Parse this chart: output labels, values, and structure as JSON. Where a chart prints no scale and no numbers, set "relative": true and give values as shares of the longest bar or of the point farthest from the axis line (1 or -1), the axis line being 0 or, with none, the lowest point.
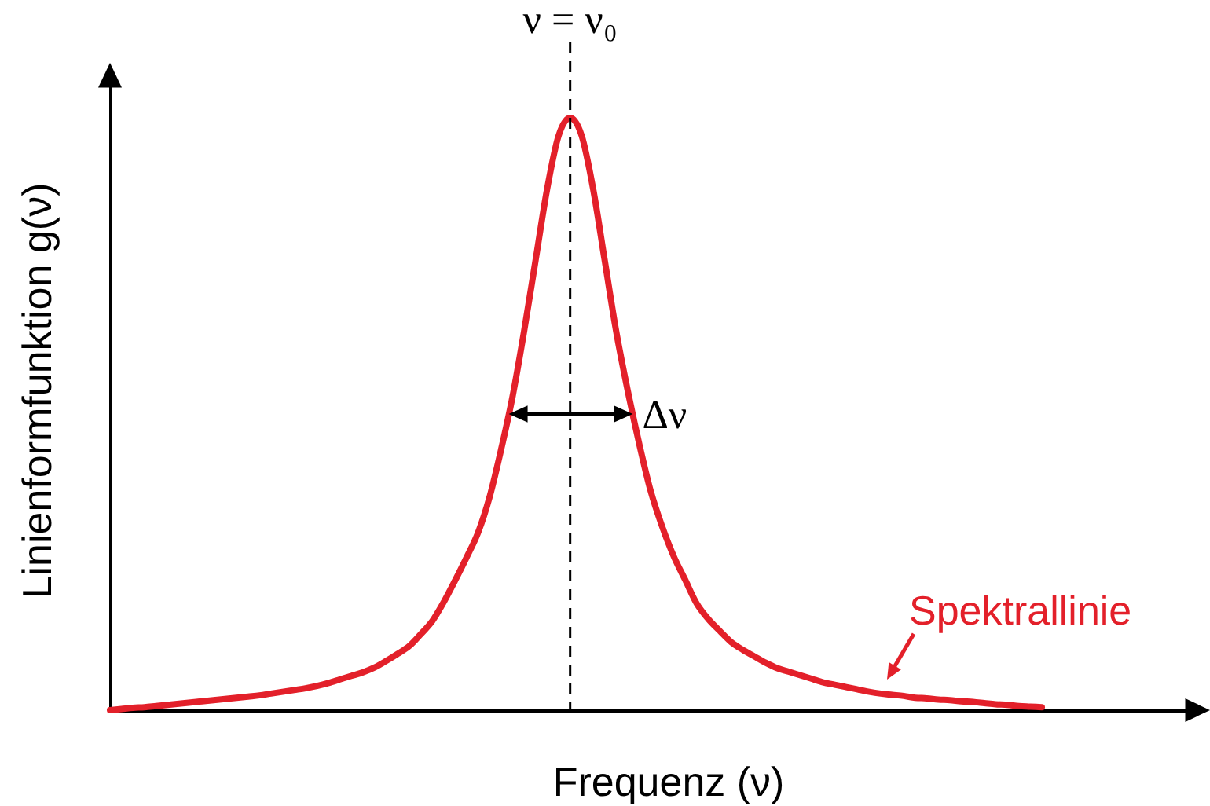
{
  "chart_data": {
    "type": "line",
    "xlabel": "Frequenz (ν)",
    "ylabel": "Linienformfunktion g(ν)",
    "relative": true,
    "line_style": "solid",
    "categories": [
      null,
      null,
      null,
      null,
      null,
      null,
      null,
      null,
      null,
      null,
      null,
      null,
      null,
      null,
      null,
      null,
      null,
      null,
      null,
      null,
      null,
      null,
      null,
      null,
      null,
      null,
      null,
      null,
      null,
      null,
      null,
      null,
      null,
      null,
      null,
      null,
      null,
      null,
      null,
      null,
      null,
      null,
      null,
      null,
      null,
      null,
      null,
      null,
      null,
      null,
      null,
      null,
      null,
      null,
      null,
      null,
      null,
      null,
      null,
      null,
      null,
      null,
      null,
      null,
      null,
      null,
      null,
      null,
      null,
      null,
      null,
      null,
      null,
      null,
      null,
      null,
      null,
      null,
      null,
      null,
      null,
      null
    ],
    "series": [
      {
        "name": "Spektrallinie",
        "color": "#e3202a",
        "values": [
          0.0,
          0.002,
          0.004,
          0.005,
          0.007,
          0.009,
          0.011,
          0.013,
          0.015,
          0.017,
          0.019,
          0.021,
          0.023,
          0.025,
          0.028,
          0.031,
          0.034,
          0.037,
          0.041,
          0.046,
          0.052,
          0.058,
          0.064,
          0.072,
          0.083,
          0.095,
          0.108,
          0.128,
          0.15,
          0.182,
          0.219,
          0.258,
          0.3,
          0.36,
          0.44,
          0.53,
          0.64,
          0.76,
          0.88,
          0.97,
          1.0,
          0.97,
          0.88,
          0.76,
          0.64,
          0.54,
          0.45,
          0.37,
          0.31,
          0.26,
          0.22,
          0.18,
          0.154,
          0.134,
          0.115,
          0.102,
          0.091,
          0.08,
          0.071,
          0.065,
          0.059,
          0.053,
          0.047,
          0.043,
          0.039,
          0.035,
          0.031,
          0.028,
          0.026,
          0.024,
          0.021,
          0.02,
          0.018,
          0.017,
          0.015,
          0.014,
          0.012,
          0.01,
          0.009,
          0.007,
          0.006,
          0.005
        ]
      }
    ],
    "annotations": [
      "ν = ν₀",
      "Δν"
    ]
  }
}
